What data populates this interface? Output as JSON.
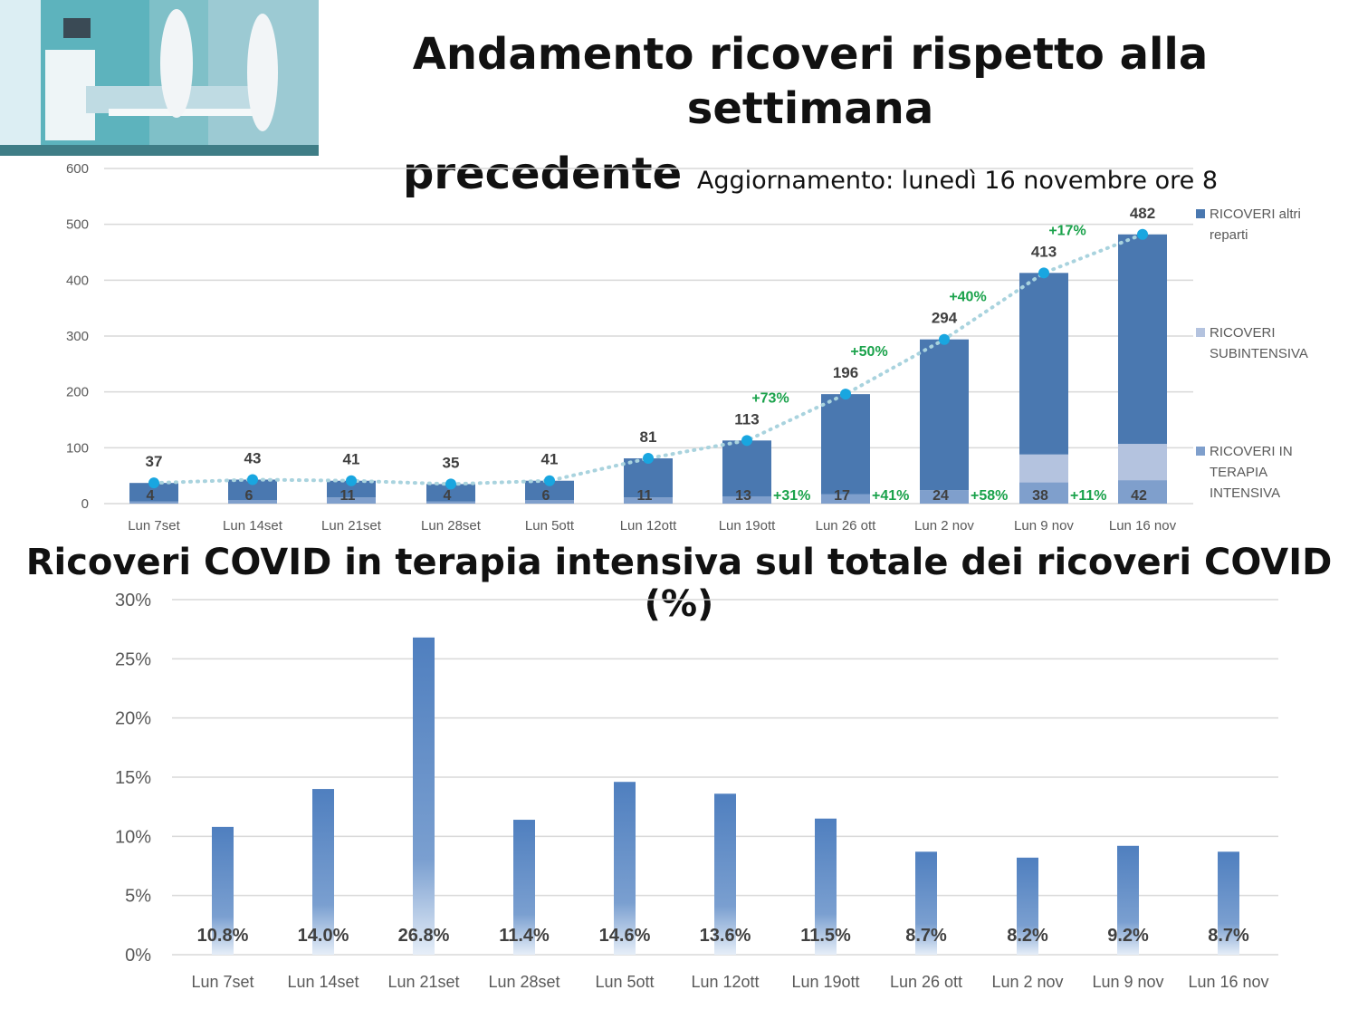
{
  "header": {
    "title_line1": "Andamento ricoveri rispetto alla settimana",
    "title_line2": "precedente",
    "update": "Aggiornamento: lunedì 16 novembre  ore 8"
  },
  "colors": {
    "altri": "#4a78b0",
    "sub": "#b4c3df",
    "ti": "#7f9fcc",
    "line": "#a9d3de",
    "dot": "#19a6e0",
    "green": "#1aa24b",
    "pct_bar": "#4f7fbf"
  },
  "chart_data": [
    {
      "type": "bar",
      "stacked": true,
      "title": "Andamento ricoveri rispetto alla settimana precedente",
      "categories": [
        "Lun 7set",
        "Lun 14set",
        "Lun 21set",
        "Lun 28set",
        "Lun 5ott",
        "Lun 12ott",
        "Lun 19ott",
        "Lun 26 ott",
        "Lun 2 nov",
        "Lun 9 nov",
        "Lun 16 nov"
      ],
      "ylim": [
        0,
        600
      ],
      "yticks": [
        0,
        100,
        200,
        300,
        400,
        500,
        600
      ],
      "grid": true,
      "legend": "right",
      "series": [
        {
          "name": "RICOVERI IN TERAPIA INTENSIVA",
          "values": [
            4,
            6,
            11,
            4,
            6,
            11,
            13,
            17,
            24,
            38,
            42
          ]
        },
        {
          "name": "RICOVERI SUBINTENSIVA",
          "values": [
            0,
            0,
            0,
            0,
            0,
            0,
            0,
            0,
            0,
            50,
            65
          ]
        },
        {
          "name": "RICOVERI altri reparti",
          "values": [
            33,
            37,
            30,
            31,
            35,
            70,
            100,
            179,
            270,
            325,
            375
          ]
        }
      ],
      "totals": [
        37,
        43,
        41,
        35,
        41,
        81,
        113,
        196,
        294,
        413,
        482
      ],
      "total_change_labels": [
        "",
        "",
        "",
        "",
        "",
        "",
        "+73%",
        "+50%",
        "+40%",
        "+17%",
        ""
      ],
      "ti_change_labels": [
        "",
        "",
        "",
        "",
        "",
        "",
        "+31%",
        "+41%",
        "+58%",
        "+11%",
        ""
      ],
      "legend_labels": [
        [
          "RICOVERI altri",
          "reparti"
        ],
        [
          "RICOVERI",
          "SUBINTENSIVA"
        ],
        [
          "RICOVERI IN",
          "TERAPIA",
          "INTENSIVA"
        ]
      ]
    },
    {
      "type": "bar",
      "title": "Ricoveri COVID in terapia intensiva sul totale dei ricoveri COVID (%)",
      "categories": [
        "Lun 7set",
        "Lun 14set",
        "Lun 21set",
        "Lun 28set",
        "Lun 5ott",
        "Lun 12ott",
        "Lun 19ott",
        "Lun 26 ott",
        "Lun 2 nov",
        "Lun 9 nov",
        "Lun 16 nov"
      ],
      "values": [
        10.8,
        14.0,
        26.8,
        11.4,
        14.6,
        13.6,
        11.5,
        8.7,
        8.2,
        9.2,
        8.7
      ],
      "data_labels": [
        "10.8%",
        "14.0%",
        "26.8%",
        "11.4%",
        "14.6%",
        "13.6%",
        "11.5%",
        "8.7%",
        "8.2%",
        "9.2%",
        "8.7%"
      ],
      "ylim": [
        0,
        30
      ],
      "ytick_labels": [
        "0%",
        "5%",
        "10%",
        "15%",
        "20%",
        "25%",
        "30%"
      ],
      "grid": true
    }
  ]
}
